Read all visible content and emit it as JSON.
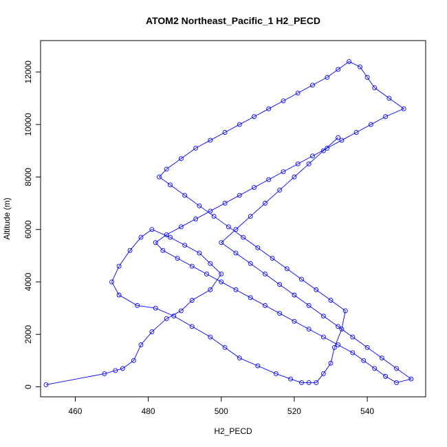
{
  "chart_data": {
    "type": "scatter",
    "title": "ATOM2 Northeast_Pacific_1 H2_PECD",
    "xlabel": "H2_PECD",
    "ylabel": "Altitude (m)",
    "xlim": [
      450.5,
      556
    ],
    "ylim": [
      -380,
      13200
    ],
    "x_ticks": [
      460,
      480,
      500,
      520,
      540
    ],
    "x_tick_labels": [
      "460",
      "480",
      "500",
      "520",
      "540"
    ],
    "y_ticks": [
      0,
      2000,
      4000,
      6000,
      8000,
      10000,
      12000
    ],
    "y_tick_labels": [
      "0",
      "2000",
      "4000",
      "6000",
      "8000",
      "10000",
      "12000"
    ],
    "grid": false,
    "legend": "none",
    "colors": {
      "series": "#0000ff",
      "frame": "#000000"
    },
    "marker": "open-circle",
    "connected": true,
    "series": [
      {
        "x": [
          452,
          468,
          471,
          473,
          476,
          478,
          481,
          485,
          489,
          492,
          497,
          500,
          497,
          494,
          490,
          486,
          481,
          478,
          475,
          472,
          470,
          472,
          477,
          482,
          487,
          492,
          497,
          501,
          505,
          510,
          515,
          519,
          522,
          524,
          526,
          528,
          530,
          531,
          533,
          534,
          530,
          526,
          522,
          518,
          514,
          510,
          506,
          502,
          498,
          494,
          490,
          486,
          483,
          485,
          489,
          493,
          497,
          501,
          505,
          509,
          513,
          517,
          521,
          525,
          529,
          532,
          535,
          538,
          540,
          542,
          546,
          550,
          545,
          541,
          537,
          533,
          529,
          525,
          521,
          517,
          513,
          509,
          505,
          501,
          497,
          493,
          489,
          485,
          482,
          484,
          488,
          492,
          496,
          500,
          504,
          508,
          512,
          516,
          520,
          524,
          528,
          532,
          536,
          539,
          542,
          545,
          548,
          552,
          548,
          544,
          540,
          536,
          532,
          528,
          524,
          520,
          516,
          512,
          508,
          504,
          500,
          504,
          508,
          512,
          516,
          520,
          524,
          528,
          532
        ],
        "y": [
          80,
          500,
          620,
          700,
          1000,
          1600,
          2100,
          2600,
          2900,
          3300,
          3700,
          4300,
          4700,
          5100,
          5400,
          5700,
          6000,
          5700,
          5200,
          4600,
          4000,
          3500,
          3100,
          3000,
          2700,
          2300,
          1900,
          1500,
          1100,
          800,
          500,
          300,
          160,
          160,
          160,
          500,
          900,
          1500,
          2200,
          2900,
          3300,
          3700,
          4100,
          4500,
          4900,
          5300,
          5700,
          6100,
          6500,
          6900,
          7300,
          7700,
          8000,
          8300,
          8700,
          9100,
          9400,
          9700,
          10000,
          10300,
          10600,
          10900,
          11200,
          11500,
          11800,
          12100,
          12400,
          12200,
          11800,
          11400,
          11000,
          10600,
          10300,
          10000,
          9700,
          9400,
          9100,
          8800,
          8500,
          8200,
          7900,
          7600,
          7300,
          7000,
          6700,
          6400,
          6100,
          5800,
          5500,
          5200,
          4900,
          4600,
          4300,
          4000,
          3700,
          3400,
          3100,
          2800,
          2500,
          2200,
          1900,
          1600,
          1300,
          1000,
          700,
          400,
          160,
          300,
          700,
          1100,
          1500,
          1900,
          2300,
          2700,
          3100,
          3500,
          3900,
          4300,
          4700,
          5100,
          5500,
          6000,
          6500,
          7000,
          7500,
          8000,
          8500,
          9000,
          9500
        ]
      }
    ]
  }
}
